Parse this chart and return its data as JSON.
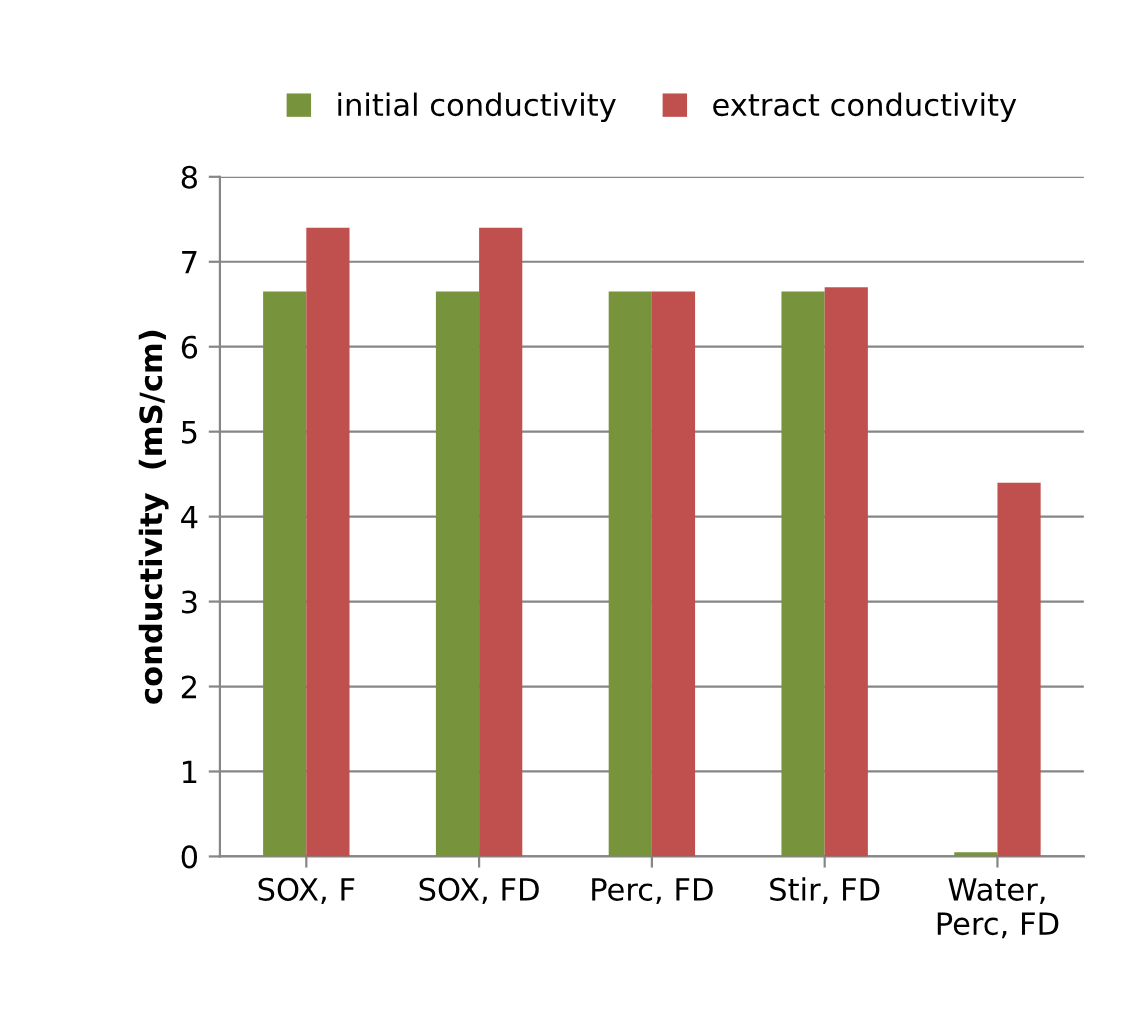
{
  "chart_data": {
    "type": "bar",
    "ylabel": "conductivity  (mS/cm)",
    "categories": [
      "SOX, F",
      "SOX, FD",
      "Perc, FD",
      "Stir, FD",
      "Water,\nPerc, FD"
    ],
    "series": [
      {
        "name": "initial conductivity",
        "color": "#77933c",
        "values": [
          6.65,
          6.65,
          6.65,
          6.65,
          0.05
        ]
      },
      {
        "name": "extract conductivity",
        "color": "#c0504d",
        "values": [
          7.4,
          7.4,
          6.65,
          6.7,
          4.4
        ]
      }
    ],
    "ylim": [
      0,
      8
    ],
    "yticks": [
      0,
      1,
      2,
      3,
      4,
      5,
      6,
      7,
      8
    ],
    "grid": "y",
    "legend": "top"
  }
}
